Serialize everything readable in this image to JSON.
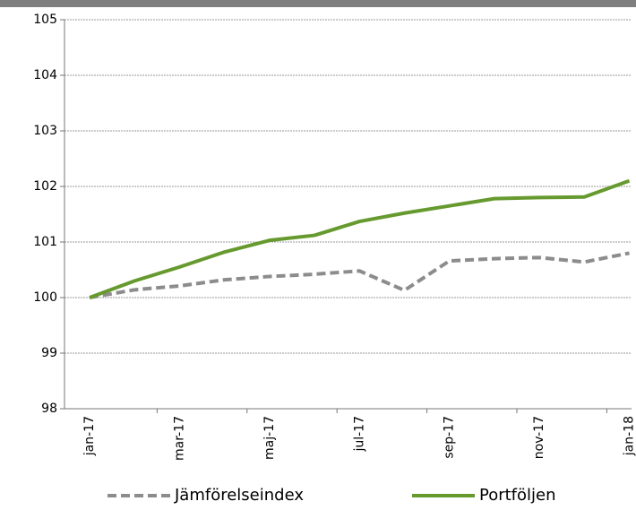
{
  "chart_data": {
    "type": "line",
    "categories": [
      "jan-17",
      null,
      "mar-17",
      null,
      "maj-17",
      null,
      "jul-17",
      null,
      "sep-17",
      null,
      "nov-17",
      null,
      "jan-18"
    ],
    "series": [
      {
        "name": "Jämförelseindex",
        "color": "#8c8c8c",
        "dash": true,
        "values": [
          100,
          100.14,
          100.21,
          100.32,
          100.38,
          100.42,
          100.48,
          100.13,
          100.66,
          100.7,
          100.72,
          100.64,
          100.8
        ]
      },
      {
        "name": "Portföljen",
        "color": "#669a2e",
        "dash": false,
        "values": [
          100,
          100.3,
          100.55,
          100.82,
          101.03,
          101.12,
          101.37,
          101.52,
          101.65,
          101.78,
          101.8,
          101.81,
          102.1
        ]
      }
    ],
    "ylim": [
      98,
      105
    ],
    "yticks": [
      98,
      99,
      100,
      101,
      102,
      103,
      104,
      105
    ],
    "grid": true
  }
}
